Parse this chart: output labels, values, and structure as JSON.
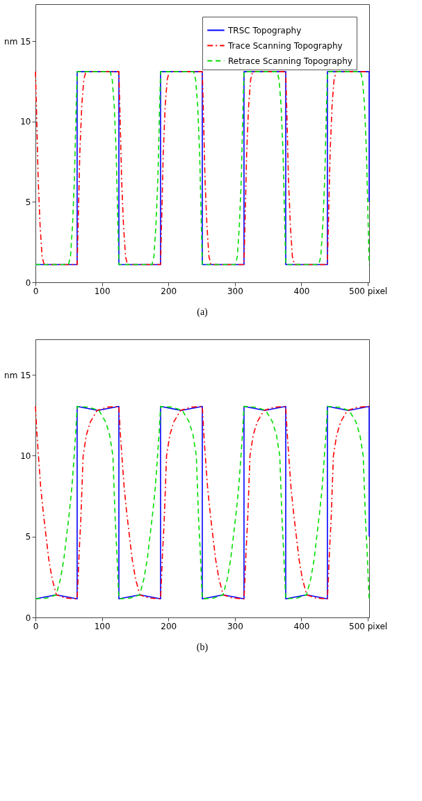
{
  "chart_data": [
    {
      "type": "line",
      "xlim": [
        0,
        502
      ],
      "ylim": [
        0,
        17.3
      ],
      "xticks": [
        0,
        100,
        200,
        300,
        400,
        {
          "value": 500,
          "label": "500 pixel"
        }
      ],
      "yticks": [
        0,
        5,
        10,
        {
          "value": 15,
          "label": "nm 15"
        }
      ],
      "grid": false,
      "legend": "top right",
      "annotations": [
        "(a)"
      ],
      "series": [
        {
          "name": "TRSC Topography",
          "color": "#0000ff",
          "line_style": "solid",
          "x": [
            0,
            62.7,
            62.7,
            125.5,
            125.5,
            188.2,
            188.2,
            251,
            251,
            313.7,
            313.7,
            376.5,
            376.5,
            439.2,
            439.2,
            502,
            502
          ],
          "values": [
            1.1,
            1.1,
            13.1,
            13.1,
            1.1,
            1.1,
            13.1,
            13.1,
            1.1,
            1.1,
            13.1,
            13.1,
            1.1,
            1.1,
            13.1,
            13.1,
            5
          ]
        },
        {
          "name": "Trace Scanning Topography",
          "color": "#ff0000",
          "line_style": "dashdot",
          "x": [
            0,
            2,
            4,
            7,
            10,
            13,
            62.7,
            64.7,
            66.7,
            69.7,
            72.7,
            75.7,
            125.5,
            127.5,
            129.5,
            132.5,
            135.5,
            138.5,
            188.2,
            190.2,
            192.2,
            195.2,
            198.2,
            201.2,
            251,
            253,
            255,
            258,
            261,
            264,
            313.7,
            315.7,
            317.7,
            320.7,
            323.7,
            326.7,
            376.5,
            378.5,
            380.5,
            383.5,
            386.5,
            389.5,
            439.2,
            441.2,
            443.2,
            446.2,
            449.2,
            452.2,
            502
          ],
          "values": [
            13.1,
            10,
            6.5,
            3.5,
            1.6,
            1.1,
            1.1,
            4.5,
            8,
            11,
            12.6,
            13.1,
            13.1,
            10,
            6.5,
            3.5,
            1.6,
            1.1,
            1.1,
            4.5,
            8,
            11,
            12.6,
            13.1,
            13.1,
            10,
            6.5,
            3.5,
            1.6,
            1.1,
            1.1,
            4.5,
            8,
            11,
            12.6,
            13.1,
            13.1,
            10,
            6.5,
            3.5,
            1.6,
            1.1,
            1.1,
            4.5,
            8,
            11,
            12.6,
            13.1,
            13.1
          ]
        },
        {
          "name": "Retrace Scanning Topography",
          "color": "#00dd00",
          "line_style": "dashed",
          "x": [
            0,
            49.7,
            52.7,
            55.7,
            58.7,
            60.7,
            62.7,
            112.5,
            115.5,
            118.5,
            121.5,
            123.5,
            125.5,
            175.2,
            178.2,
            181.2,
            184.2,
            186.2,
            188.2,
            238,
            241,
            244,
            247,
            249,
            251,
            300.7,
            303.7,
            306.7,
            309.7,
            311.7,
            313.7,
            363.5,
            366.5,
            369.5,
            372.5,
            374.5,
            376.5,
            426.2,
            429.2,
            432.2,
            435.2,
            437.2,
            439.2,
            489,
            492,
            495,
            498,
            500,
            502
          ],
          "values": [
            1.1,
            1.1,
            1.6,
            3.5,
            6.5,
            10,
            13.1,
            13.1,
            12.6,
            11,
            8,
            4.5,
            1.1,
            1.1,
            1.6,
            3.5,
            6.5,
            10,
            13.1,
            13.1,
            12.6,
            11,
            8,
            4.5,
            1.1,
            1.1,
            1.6,
            3.5,
            6.5,
            10,
            13.1,
            13.1,
            12.6,
            11,
            8,
            4.5,
            1.1,
            1.1,
            1.6,
            3.5,
            6.5,
            10,
            13.1,
            13.1,
            12.6,
            11,
            8,
            4.5,
            1.1
          ]
        }
      ]
    },
    {
      "type": "line",
      "xlim": [
        0,
        502
      ],
      "ylim": [
        0,
        17.2
      ],
      "xticks": [
        0,
        100,
        200,
        300,
        400,
        {
          "value": 500,
          "label": "500 pixel"
        }
      ],
      "yticks": [
        0,
        5,
        10,
        {
          "value": 15,
          "label": "nm 15"
        }
      ],
      "grid": false,
      "legend": "top right",
      "annotations": [
        "(b)"
      ],
      "series": [
        {
          "name": "TRSC Topography",
          "color": "#0000ff",
          "line_style": "solid",
          "x": [
            0,
            31.4,
            62.7,
            62.7,
            94,
            125.5,
            125.5,
            156.9,
            188.2,
            188.2,
            219.6,
            251,
            251,
            282.4,
            313.7,
            313.7,
            345.1,
            376.5,
            376.5,
            407.9,
            439.2,
            439.2,
            470.6,
            502,
            502
          ],
          "values": [
            1.15,
            1.4,
            1.15,
            13.05,
            12.8,
            13.05,
            1.15,
            1.4,
            1.15,
            13.05,
            12.8,
            13.05,
            1.15,
            1.4,
            1.15,
            13.05,
            12.8,
            13.05,
            1.15,
            1.4,
            1.15,
            13.05,
            12.8,
            13.05,
            5
          ]
        },
        {
          "name": "Trace Scanning Topography",
          "color": "#ff0000",
          "line_style": "dashdot",
          "x": [
            0,
            2,
            4.5,
            8,
            12,
            16,
            20,
            25,
            31.4,
            45,
            62.7,
            63.7,
            65.7,
            68.2,
            71.7,
            76.7,
            82.7,
            92.7,
            107.7,
            125.5,
            127.5,
            130,
            133.5,
            137.5,
            141.5,
            145.5,
            150.5,
            156.9,
            170.5,
            188.2,
            189.2,
            191.2,
            193.7,
            197.2,
            202.2,
            208.2,
            218.2,
            233.2,
            251,
            253,
            255.5,
            259,
            263,
            267,
            271,
            276,
            282.4,
            296,
            313.7,
            314.7,
            316.7,
            319.2,
            322.7,
            327.7,
            333.7,
            343.7,
            358.7,
            376.5,
            378.5,
            381,
            384.5,
            388.5,
            392.5,
            396.5,
            401.5,
            407.9,
            421.5,
            439.2,
            440.2,
            442.2,
            444.7,
            448.2,
            453.2,
            459.2,
            469.2,
            484.2,
            502
          ],
          "values": [
            13.05,
            11.5,
            10,
            8,
            6.4,
            5,
            3.6,
            2.4,
            1.4,
            1.2,
            1.15,
            2,
            4,
            6,
            10,
            11.3,
            12.1,
            12.8,
            13,
            13.05,
            11.5,
            10,
            8,
            6.4,
            5,
            3.6,
            2.4,
            1.4,
            1.2,
            1.15,
            2,
            4,
            6,
            10,
            11.3,
            12.1,
            12.8,
            13,
            13.05,
            11.5,
            10,
            8,
            6.4,
            5,
            3.6,
            2.4,
            1.4,
            1.2,
            1.15,
            2,
            4,
            6,
            10,
            11.3,
            12.1,
            12.8,
            13,
            13.05,
            11.5,
            10,
            8,
            6.4,
            5,
            3.6,
            2.4,
            1.4,
            1.2,
            1.15,
            2,
            4,
            6,
            10,
            11.3,
            12.1,
            12.8,
            13,
            13.05
          ]
        },
        {
          "name": "Retrace Scanning Topography",
          "color": "#00dd00",
          "line_style": "dashed",
          "x": [
            0,
            17.7,
            31.3,
            37.7,
            42.7,
            46.7,
            50.7,
            54.7,
            58.2,
            60.7,
            62.7,
            80.5,
            95.5,
            105.5,
            111.5,
            116.5,
            120,
            122.5,
            124.5,
            125.5,
            143.2,
            156.8,
            163.2,
            168.2,
            172.2,
            176.2,
            180.2,
            183.7,
            186.2,
            188.2,
            206,
            221,
            231,
            237,
            242,
            245.5,
            248,
            250,
            251,
            268.7,
            282.3,
            288.7,
            293.7,
            297.7,
            301.7,
            305.7,
            309.2,
            311.7,
            313.7,
            331.5,
            346.5,
            356.5,
            362.5,
            367.5,
            371,
            373.5,
            375.5,
            376.5,
            394.2,
            407.8,
            414.2,
            419.2,
            423.2,
            427.2,
            431.2,
            434.7,
            437.2,
            439.2,
            457,
            472,
            482,
            488,
            493,
            496.5,
            499,
            501,
            502
          ],
          "values": [
            1.15,
            1.2,
            1.4,
            2.4,
            3.6,
            5,
            6.4,
            8,
            10,
            11.5,
            13.05,
            13,
            12.8,
            12.1,
            11.3,
            10,
            6,
            4,
            2,
            1.15,
            1.2,
            1.4,
            2.4,
            3.6,
            5,
            6.4,
            8,
            10,
            11.5,
            13.05,
            13,
            12.8,
            12.1,
            11.3,
            10,
            6,
            4,
            2,
            1.15,
            1.2,
            1.4,
            2.4,
            3.6,
            5,
            6.4,
            8,
            10,
            11.5,
            13.05,
            13,
            12.8,
            12.1,
            11.3,
            10,
            6,
            4,
            2,
            1.15,
            1.2,
            1.4,
            2.4,
            3.6,
            5,
            6.4,
            8,
            10,
            11.5,
            13.05,
            13,
            12.8,
            12.1,
            11.3,
            10,
            6,
            4,
            2,
            1.15
          ]
        }
      ]
    }
  ]
}
